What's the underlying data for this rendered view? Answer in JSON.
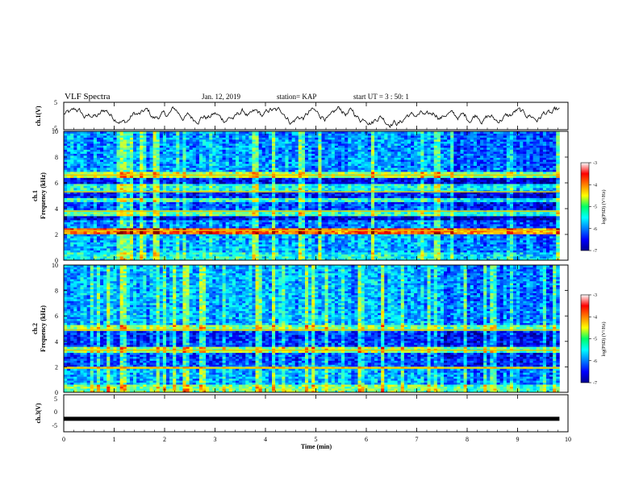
{
  "header": {
    "title": "VLF Spectra",
    "date": "Jan. 12, 2019",
    "station": "station= KAP",
    "start": "start  UT  =   3  : 50: 1"
  },
  "chart_data": [
    {
      "type": "line",
      "name": "ch1-waveform",
      "ylabel": "ch.1(V)",
      "xlim": [
        0,
        10
      ],
      "ylim": [
        -5,
        5
      ],
      "yticks": [
        "5",
        "-5"
      ],
      "x_data_end": 9.83,
      "level": 0,
      "amplitude": 2.5
    },
    {
      "type": "heatmap",
      "name": "ch1-spectrogram",
      "ylabel": "ch.1\nFrequency (kHz)",
      "xlim": [
        0,
        10
      ],
      "ylim": [
        0,
        10
      ],
      "yticks": [
        "0",
        "2",
        "4",
        "6",
        "8",
        "10"
      ],
      "x_data_end": 9.83,
      "colorbar": {
        "label": "log(PSD) (V²/Hz)",
        "range": [
          -7,
          -3
        ],
        "ticks": [
          "-3",
          "-4",
          "-5",
          "-6",
          "-7"
        ]
      },
      "bands_khz": [
        {
          "f": [
            0.0,
            0.5
          ],
          "level": -5.4
        },
        {
          "f": [
            0.5,
            2.0
          ],
          "level": -5.8
        },
        {
          "f": [
            2.0,
            2.5
          ],
          "level": -3.9
        },
        {
          "f": [
            2.5,
            3.0
          ],
          "level": -6.0
        },
        {
          "f": [
            3.0,
            3.4
          ],
          "level": -6.6
        },
        {
          "f": [
            3.4,
            3.8
          ],
          "level": -5.2
        },
        {
          "f": [
            3.8,
            4.4
          ],
          "level": -6.2
        },
        {
          "f": [
            4.4,
            4.8
          ],
          "level": -5.3
        },
        {
          "f": [
            4.8,
            5.2
          ],
          "level": -6.4
        },
        {
          "f": [
            5.2,
            5.8
          ],
          "level": -5.4
        },
        {
          "f": [
            5.8,
            6.4
          ],
          "level": -6.5
        },
        {
          "f": [
            6.4,
            6.8
          ],
          "level": -4.8
        },
        {
          "f": [
            6.8,
            10.0
          ],
          "level": -5.9
        }
      ],
      "lines_khz": [
        2.3,
        3.8,
        5.3,
        6.6
      ],
      "quiet_after_min": 7.5
    },
    {
      "type": "heatmap",
      "name": "ch2-spectrogram",
      "ylabel": "ch.2\nFrequency (kHz)",
      "xlim": [
        0,
        10
      ],
      "ylim": [
        0,
        10
      ],
      "yticks": [
        "0",
        "2",
        "4",
        "6",
        "8",
        "10"
      ],
      "x_data_end": 9.83,
      "colorbar": {
        "label": "log(PSD) (V²/Hz)",
        "range": [
          -7,
          -3
        ],
        "ticks": [
          "-3",
          "-4",
          "-5",
          "-6",
          "-7"
        ]
      },
      "bands_khz": [
        {
          "f": [
            0.0,
            0.5
          ],
          "level": -5.0
        },
        {
          "f": [
            0.5,
            1.8
          ],
          "level": -5.8
        },
        {
          "f": [
            1.8,
            2.0
          ],
          "level": -4.6
        },
        {
          "f": [
            2.0,
            3.0
          ],
          "level": -6.2
        },
        {
          "f": [
            3.0,
            3.5
          ],
          "level": -4.9
        },
        {
          "f": [
            3.5,
            4.7
          ],
          "level": -6.3
        },
        {
          "f": [
            4.7,
            5.2
          ],
          "level": -5.0
        },
        {
          "f": [
            5.2,
            10.0
          ],
          "level": -5.8
        }
      ],
      "lines_khz": [
        1.9,
        3.3,
        4.9
      ],
      "quiet_after_min": 7.5
    },
    {
      "type": "line",
      "name": "ch3-waveform",
      "ylabel": "ch.3(V)",
      "xlim": [
        0,
        10
      ],
      "ylim": [
        -5,
        5
      ],
      "yticks": [
        "5",
        "0",
        "-5"
      ],
      "x_data_end": 9.83,
      "level": -1.5,
      "amplitude": 0
    }
  ],
  "xaxis": {
    "label": "Time (min)",
    "ticks": [
      "0",
      "1",
      "2",
      "3",
      "4",
      "5",
      "6",
      "7",
      "8",
      "9",
      "10"
    ]
  }
}
